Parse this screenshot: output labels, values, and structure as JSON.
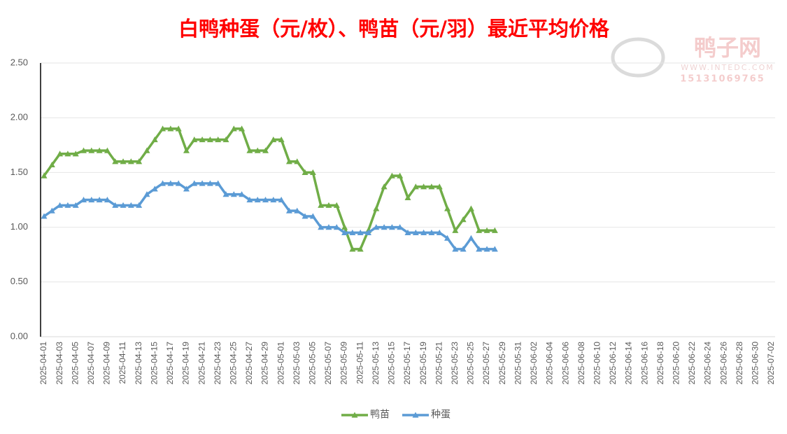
{
  "chart_data": {
    "type": "line",
    "title": "白鸭种蛋（元/枚）、鸭苗（元/羽）最近平均价格",
    "watermark": {
      "name": "鸭子网",
      "url": "WWW.INTEDC.COM",
      "phone": "15131069765"
    },
    "categories": [
      "2025-04-01",
      null,
      "2025-04-03",
      null,
      "2025-04-05",
      null,
      "2025-04-07",
      null,
      "2025-04-09",
      null,
      "2025-04-11",
      null,
      "2025-04-13",
      null,
      "2025-04-15",
      null,
      "2025-04-17",
      null,
      "2025-04-19",
      null,
      "2025-04-21",
      null,
      "2025-04-23",
      null,
      "2025-04-25",
      null,
      "2025-04-27",
      null,
      "2025-04-29",
      null,
      "2025-05-01",
      null,
      "2025-05-03",
      null,
      "2025-05-05",
      null,
      "2025-05-07",
      null,
      "2025-05-09",
      null,
      "2025-05-11",
      null,
      "2025-05-13",
      null,
      "2025-05-15",
      null,
      "2025-05-17",
      null,
      "2025-05-19",
      null,
      "2025-05-21",
      null,
      "2025-05-23",
      null,
      "2025-05-25",
      null,
      "2025-05-27",
      null,
      "2025-05-29",
      null,
      "2025-05-31",
      null,
      "2025-06-02",
      null,
      "2025-06-04",
      null,
      "2025-06-06",
      null,
      "2025-06-08",
      null,
      "2025-06-10",
      null,
      "2025-06-12",
      null,
      "2025-06-14",
      null,
      "2025-06-16",
      null,
      "2025-06-18",
      null,
      "2025-06-20",
      null,
      "2025-06-22",
      null,
      "2025-06-24",
      null,
      "2025-06-26",
      null,
      "2025-06-28",
      null,
      "2025-06-30",
      null,
      "2025-07-02"
    ],
    "series": [
      {
        "name": "鸭苗",
        "color": "#70ad47",
        "values": [
          1.47,
          1.57,
          1.67,
          1.67,
          1.67,
          1.7,
          1.7,
          1.7,
          1.7,
          1.6,
          1.6,
          1.6,
          1.6,
          1.7,
          1.8,
          1.9,
          1.9,
          1.9,
          1.7,
          1.8,
          1.8,
          1.8,
          1.8,
          1.8,
          1.9,
          1.9,
          1.7,
          1.7,
          1.7,
          1.8,
          1.8,
          1.6,
          1.6,
          1.5,
          1.5,
          1.2,
          1.2,
          1.2,
          1.0,
          0.8,
          0.8,
          0.97,
          1.17,
          1.37,
          1.47,
          1.47,
          1.27,
          1.37,
          1.37,
          1.37,
          1.37,
          1.17,
          0.97,
          1.07,
          1.17,
          0.97,
          0.97,
          0.97,
          null,
          null,
          null,
          null,
          null,
          null,
          null,
          null,
          null,
          null,
          null,
          null,
          null,
          null,
          null,
          null,
          null,
          null,
          null,
          null,
          null,
          null,
          null,
          null,
          null,
          null,
          null,
          null,
          null,
          null,
          null,
          null,
          null,
          null,
          null
        ]
      },
      {
        "name": "种蛋",
        "color": "#5b9bd5",
        "values": [
          1.1,
          1.15,
          1.2,
          1.2,
          1.2,
          1.25,
          1.25,
          1.25,
          1.25,
          1.2,
          1.2,
          1.2,
          1.2,
          1.3,
          1.35,
          1.4,
          1.4,
          1.4,
          1.35,
          1.4,
          1.4,
          1.4,
          1.4,
          1.3,
          1.3,
          1.3,
          1.25,
          1.25,
          1.25,
          1.25,
          1.25,
          1.15,
          1.15,
          1.1,
          1.1,
          1.0,
          1.0,
          1.0,
          0.95,
          0.95,
          0.95,
          0.95,
          1.0,
          1.0,
          1.0,
          1.0,
          0.95,
          0.95,
          0.95,
          0.95,
          0.95,
          0.9,
          0.8,
          0.8,
          0.9,
          0.8,
          0.8,
          0.8,
          null,
          null,
          null,
          null,
          null,
          null,
          null,
          null,
          null,
          null,
          null,
          null,
          null,
          null,
          null,
          null,
          null,
          null,
          null,
          null,
          null,
          null,
          null,
          null,
          null,
          null,
          null,
          null,
          null,
          null,
          null,
          null,
          null,
          null,
          null
        ]
      }
    ],
    "ylim": [
      0,
      2.5
    ],
    "yticks": [
      {
        "value": 0,
        "label": "0.00"
      },
      {
        "value": 0.5,
        "label": "0.50"
      },
      {
        "value": 1,
        "label": "1.00"
      },
      {
        "value": 1.5,
        "label": "1.50"
      },
      {
        "value": 2,
        "label": "2.00"
      },
      {
        "value": 2.5,
        "label": "2.50"
      }
    ],
    "grid": true,
    "legend": "bottom"
  }
}
